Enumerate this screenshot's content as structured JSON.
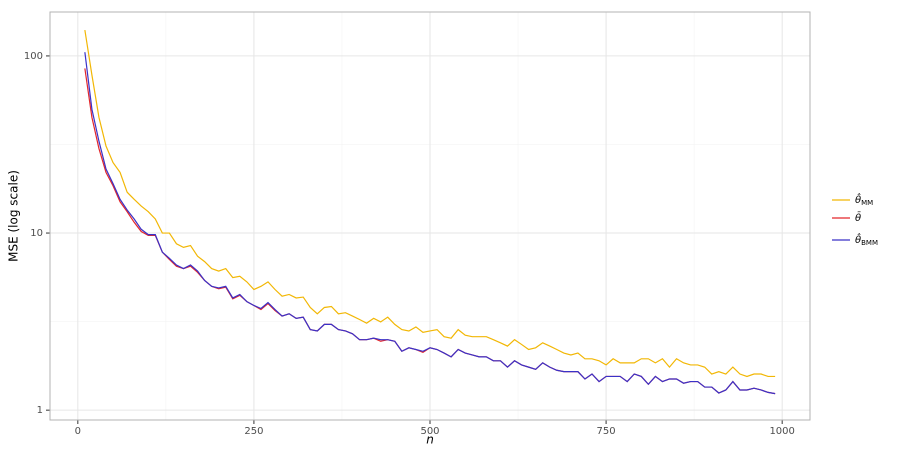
{
  "chart_data": {
    "type": "line",
    "x_label": "n",
    "y_label": "MSE (log scale)",
    "log_y": true,
    "grid": true,
    "xlim": [
      -39.5,
      1039.5
    ],
    "ylim": [
      0.88,
      177
    ],
    "xticks": [
      0,
      250,
      500,
      750,
      1000
    ],
    "yticks": [
      1,
      10,
      100
    ],
    "minor_xticks": [
      125,
      375,
      625,
      875
    ],
    "minor_yticks": [
      3.1623,
      31.623
    ],
    "legend": "right",
    "x": [
      10,
      20,
      30,
      40,
      50,
      60,
      70,
      80,
      90,
      100,
      110,
      120,
      130,
      140,
      150,
      160,
      170,
      180,
      190,
      200,
      210,
      220,
      230,
      240,
      250,
      260,
      270,
      280,
      290,
      300,
      310,
      320,
      330,
      340,
      350,
      360,
      370,
      380,
      390,
      400,
      410,
      420,
      430,
      440,
      450,
      460,
      470,
      480,
      490,
      500,
      510,
      520,
      530,
      540,
      550,
      560,
      570,
      580,
      590,
      600,
      610,
      620,
      630,
      640,
      650,
      660,
      670,
      680,
      690,
      700,
      710,
      720,
      730,
      740,
      750,
      760,
      770,
      780,
      790,
      800,
      810,
      820,
      830,
      840,
      850,
      860,
      870,
      880,
      890,
      900,
      910,
      920,
      930,
      940,
      950,
      960,
      970,
      980,
      990
    ],
    "series": [
      {
        "name": "θ̂",
        "subscript": "MM",
        "color": "#f2b705",
        "values": [
          140,
          78,
          45,
          31,
          25,
          22,
          17,
          15.5,
          14.2,
          13.2,
          12,
          10,
          10,
          8.7,
          8.3,
          8.5,
          7.4,
          6.9,
          6.3,
          6.1,
          6.3,
          5.6,
          5.7,
          5.3,
          4.8,
          5.0,
          5.3,
          4.8,
          4.4,
          4.5,
          4.3,
          4.35,
          3.8,
          3.5,
          3.8,
          3.85,
          3.5,
          3.55,
          3.4,
          3.25,
          3.1,
          3.3,
          3.15,
          3.35,
          3.05,
          2.85,
          2.8,
          2.95,
          2.75,
          2.8,
          2.85,
          2.6,
          2.55,
          2.85,
          2.65,
          2.6,
          2.6,
          2.6,
          2.5,
          2.4,
          2.3,
          2.5,
          2.35,
          2.2,
          2.25,
          2.4,
          2.3,
          2.2,
          2.1,
          2.05,
          2.1,
          1.95,
          1.95,
          1.9,
          1.8,
          1.95,
          1.85,
          1.85,
          1.85,
          1.95,
          1.95,
          1.85,
          1.95,
          1.75,
          1.95,
          1.85,
          1.8,
          1.8,
          1.75,
          1.6,
          1.65,
          1.6,
          1.75,
          1.6,
          1.55,
          1.6,
          1.6,
          1.55,
          1.55
        ]
      },
      {
        "name": "θ̄",
        "color": "#e3262b",
        "values": [
          85,
          45,
          30,
          22,
          18.5,
          15,
          13.2,
          11.5,
          10.2,
          9.7,
          9.7,
          7.8,
          7.1,
          6.5,
          6.3,
          6.5,
          6.0,
          5.4,
          5.0,
          4.85,
          4.95,
          4.25,
          4.45,
          4.1,
          3.9,
          3.7,
          4.0,
          3.65,
          3.4,
          3.5,
          3.3,
          3.35,
          2.85,
          2.8,
          3.05,
          3.05,
          2.85,
          2.8,
          2.7,
          2.5,
          2.5,
          2.55,
          2.45,
          2.5,
          2.45,
          2.15,
          2.25,
          2.2,
          2.12,
          2.25,
          2.2,
          2.1,
          2.0,
          2.2,
          2.1,
          2.05,
          2.0,
          2.0,
          1.9,
          1.9,
          1.75,
          1.9,
          1.8,
          1.75,
          1.7,
          1.85,
          1.75,
          1.68,
          1.65,
          1.65,
          1.65,
          1.5,
          1.6,
          1.45,
          1.55,
          1.55,
          1.55,
          1.45,
          1.6,
          1.55,
          1.4,
          1.55,
          1.45,
          1.5,
          1.5,
          1.42,
          1.45,
          1.45,
          1.35,
          1.35,
          1.25,
          1.3,
          1.45,
          1.3,
          1.3,
          1.33,
          1.3,
          1.26,
          1.24
        ]
      },
      {
        "name": "θ̂",
        "subscript": "BMM",
        "color": "#3a32c8",
        "values": [
          105,
          50,
          33,
          23,
          19,
          15.5,
          13.5,
          12,
          10.5,
          9.8,
          9.8,
          7.8,
          7.2,
          6.6,
          6.3,
          6.6,
          6.1,
          5.4,
          5.0,
          4.9,
          5.0,
          4.3,
          4.5,
          4.1,
          3.9,
          3.75,
          4.05,
          3.7,
          3.4,
          3.5,
          3.3,
          3.35,
          2.85,
          2.8,
          3.05,
          3.05,
          2.85,
          2.8,
          2.7,
          2.5,
          2.5,
          2.55,
          2.5,
          2.5,
          2.45,
          2.15,
          2.25,
          2.2,
          2.15,
          2.25,
          2.2,
          2.1,
          2.0,
          2.2,
          2.1,
          2.05,
          2.0,
          2.0,
          1.9,
          1.9,
          1.75,
          1.9,
          1.8,
          1.75,
          1.7,
          1.85,
          1.75,
          1.68,
          1.65,
          1.65,
          1.65,
          1.5,
          1.6,
          1.45,
          1.55,
          1.55,
          1.55,
          1.45,
          1.6,
          1.55,
          1.4,
          1.55,
          1.45,
          1.5,
          1.5,
          1.42,
          1.45,
          1.45,
          1.35,
          1.35,
          1.25,
          1.3,
          1.45,
          1.3,
          1.3,
          1.33,
          1.3,
          1.26,
          1.24
        ]
      }
    ]
  }
}
